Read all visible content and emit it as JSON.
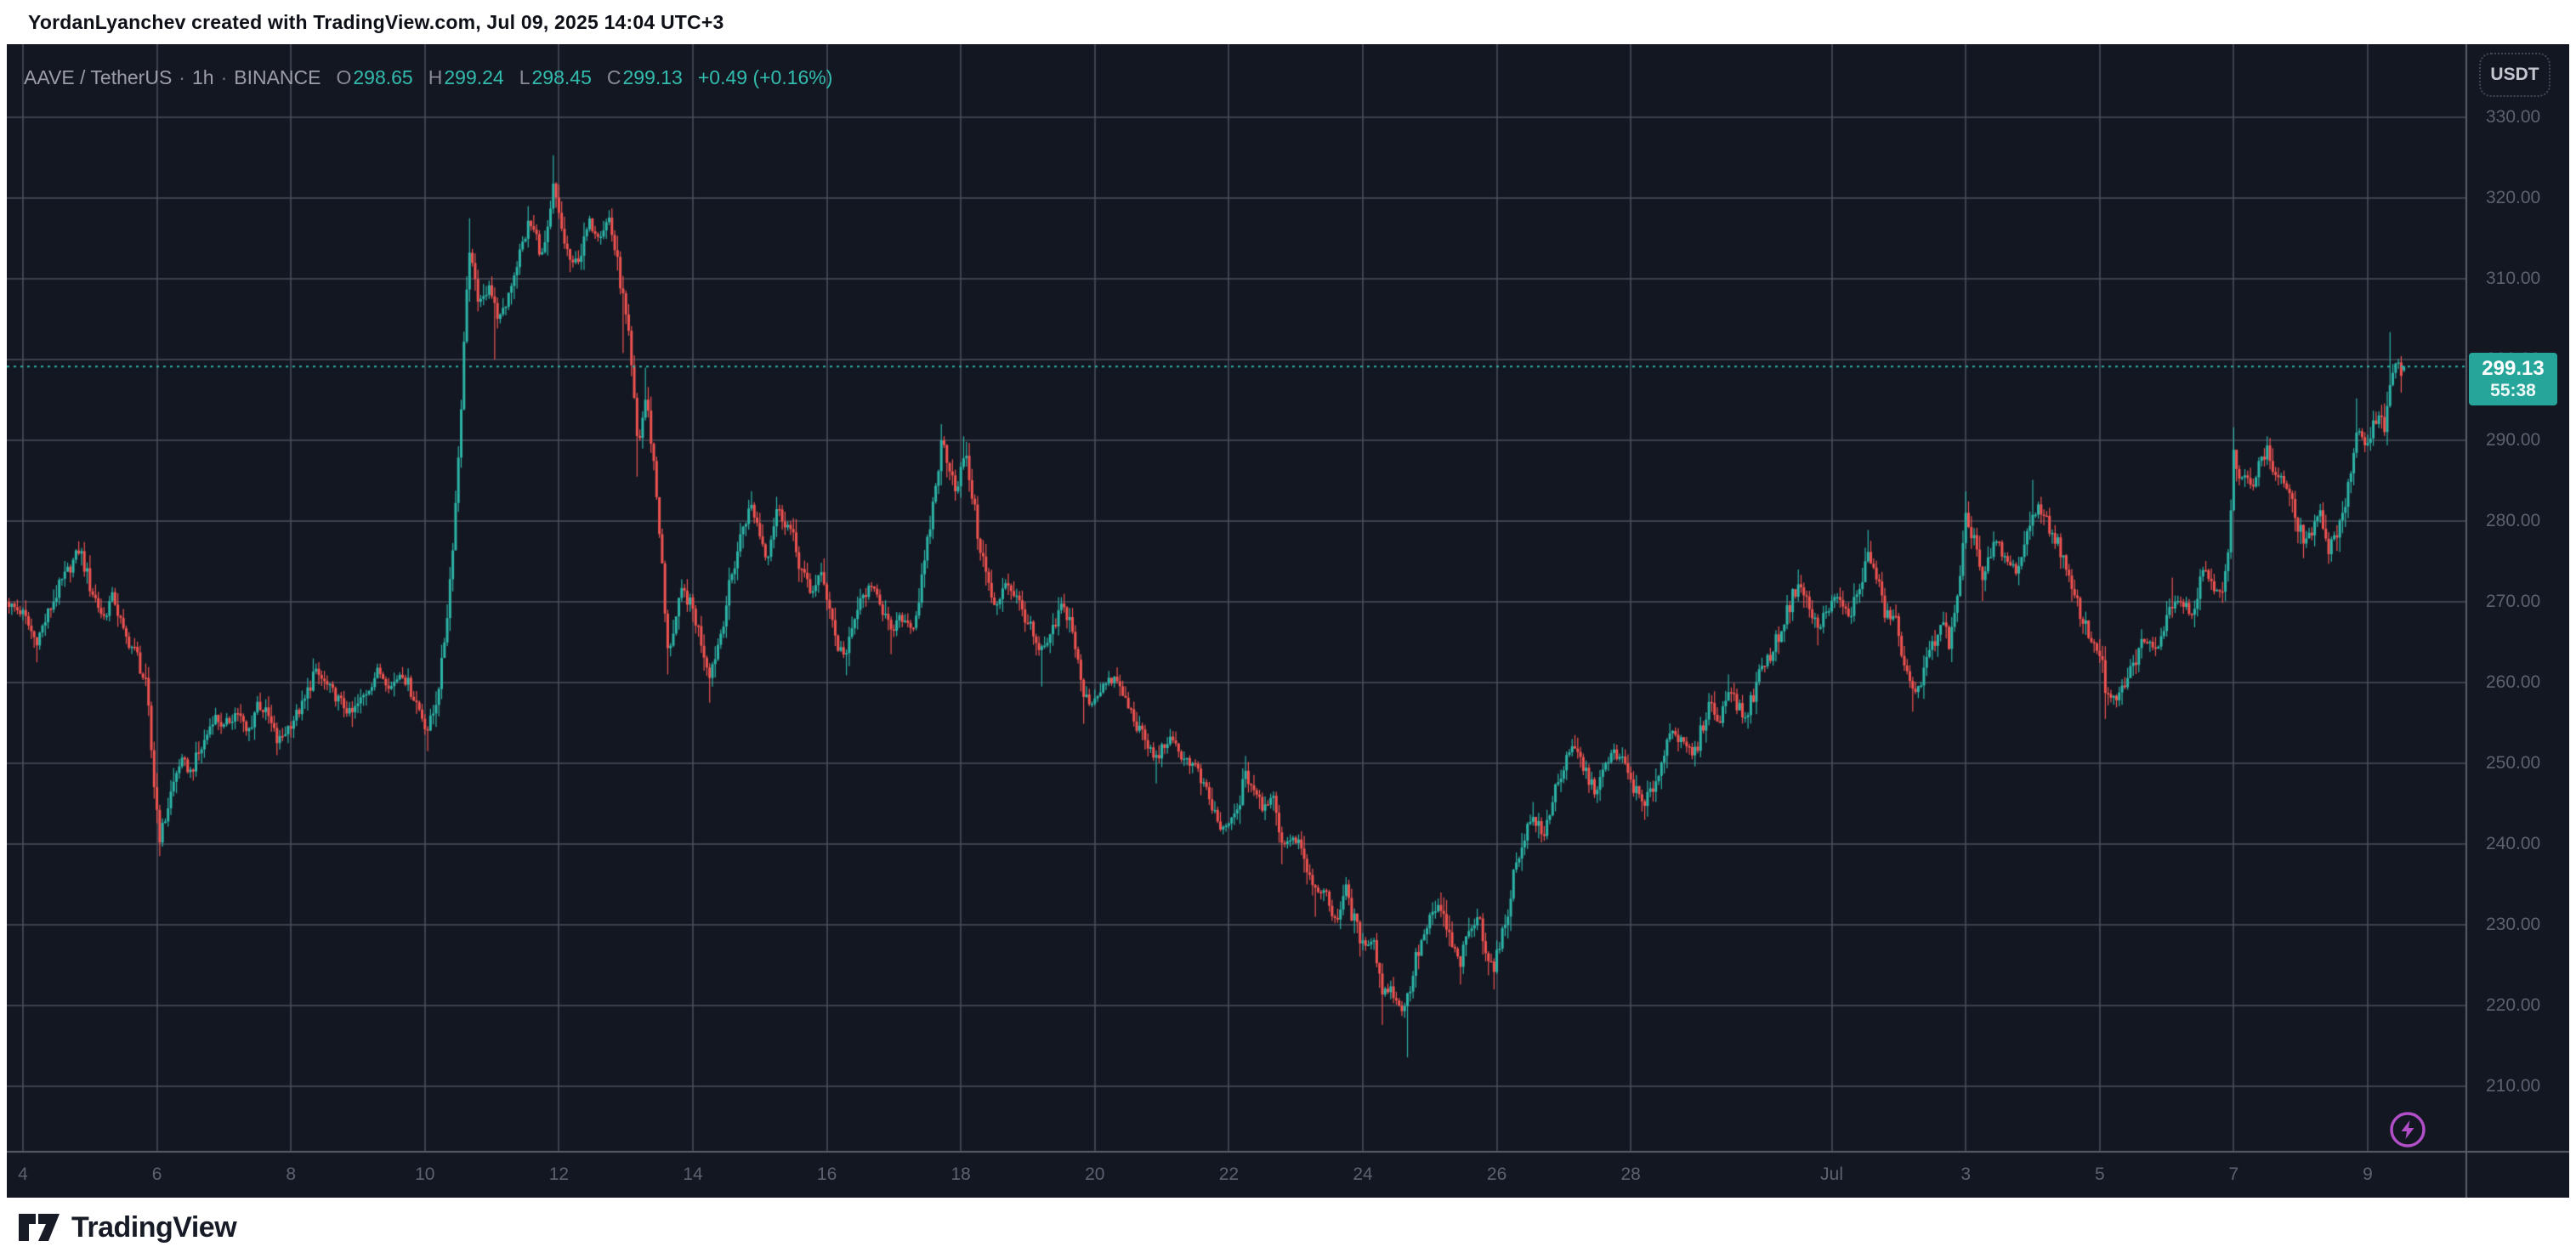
{
  "banner": {
    "text": "YordanLyanchev created with TradingView.com, Jul 09, 2025 14:04 UTC+3"
  },
  "legend": {
    "symbol": "AAVE / TetherUS",
    "separator": "·",
    "interval": "1h",
    "exchange": "BINANCE",
    "ohlc": [
      {
        "k": "O",
        "v": "298.65"
      },
      {
        "k": "H",
        "v": "299.24"
      },
      {
        "k": "L",
        "v": "298.45"
      },
      {
        "k": "C",
        "v": "299.13"
      }
    ],
    "change": "+0.49 (+0.16%)"
  },
  "price_axis": {
    "currency_button": "USDT",
    "ticks": [
      "330.00",
      "320.00",
      "310.00",
      "300.00",
      "290.00",
      "280.00",
      "270.00",
      "260.00",
      "250.00",
      "240.00",
      "230.00",
      "220.00",
      "210.00"
    ],
    "tick_prices": [
      330,
      320,
      310,
      300,
      290,
      280,
      270,
      260,
      250,
      240,
      230,
      220,
      210
    ]
  },
  "price_tag": {
    "price": "299.13",
    "countdown": "55:38"
  },
  "time_axis": {
    "labels": [
      {
        "label": "4",
        "d": 0
      },
      {
        "label": "6",
        "d": 2
      },
      {
        "label": "8",
        "d": 4
      },
      {
        "label": "10",
        "d": 6
      },
      {
        "label": "12",
        "d": 8
      },
      {
        "label": "14",
        "d": 10
      },
      {
        "label": "16",
        "d": 12
      },
      {
        "label": "18",
        "d": 14
      },
      {
        "label": "20",
        "d": 16
      },
      {
        "label": "22",
        "d": 18
      },
      {
        "label": "24",
        "d": 20
      },
      {
        "label": "26",
        "d": 22
      },
      {
        "label": "28",
        "d": 24
      },
      {
        "label": "Jul",
        "d": 27
      },
      {
        "label": "3",
        "d": 29
      },
      {
        "label": "5",
        "d": 31
      },
      {
        "label": "7",
        "d": 33
      },
      {
        "label": "9",
        "d": 35
      }
    ]
  },
  "footer": {
    "brand": "TradingView"
  },
  "colors": {
    "background": "#131722",
    "grid": "#4a4e5a",
    "axis_border": "#5a5e68",
    "up": "#2cb4a7",
    "down": "#ef5350",
    "price_line": "#2cb4a7",
    "price_tag_bg": "#26a69a",
    "flash_purple": "#b14ec8"
  },
  "chart_data": {
    "type": "candlestick",
    "title": "AAVE / TetherUS · 1h · BINANCE",
    "symbol": "AAVE/USDT",
    "interval": "1h",
    "exchange": "BINANCE",
    "current_candle": {
      "open": 298.65,
      "high": 299.24,
      "low": 298.45,
      "close": 299.13
    },
    "change_abs": 0.49,
    "change_pct": 0.16,
    "last_price": 299.13,
    "ylim": [
      202,
      343
    ],
    "x_days_span": [
      "Jun 4",
      "Jul 9"
    ],
    "gridline_prices": [
      210,
      220,
      230,
      240,
      250,
      260,
      270,
      280,
      290,
      300,
      310,
      320,
      330
    ],
    "keypoints_day_price": [
      [
        -0.25,
        270
      ],
      [
        0,
        268.5
      ],
      [
        0.2,
        265
      ],
      [
        0.35,
        268
      ],
      [
        0.55,
        272
      ],
      [
        0.85,
        276.5
      ],
      [
        1,
        272
      ],
      [
        1.2,
        268
      ],
      [
        1.35,
        271
      ],
      [
        1.5,
        266
      ],
      [
        1.7,
        263.5
      ],
      [
        1.85,
        259
      ],
      [
        1.95,
        248
      ],
      [
        2.05,
        240.5
      ],
      [
        2.2,
        246
      ],
      [
        2.35,
        250.5
      ],
      [
        2.5,
        249
      ],
      [
        2.7,
        252.5
      ],
      [
        2.85,
        256
      ],
      [
        3,
        254.5
      ],
      [
        3.2,
        256.5
      ],
      [
        3.35,
        253.5
      ],
      [
        3.5,
        257.5
      ],
      [
        3.65,
        256
      ],
      [
        3.8,
        252.5
      ],
      [
        4,
        255
      ],
      [
        4.2,
        257.5
      ],
      [
        4.35,
        261.5
      ],
      [
        4.55,
        259.5
      ],
      [
        4.75,
        257.5
      ],
      [
        4.9,
        256
      ],
      [
        5.1,
        258.5
      ],
      [
        5.3,
        261.5
      ],
      [
        5.5,
        259.5
      ],
      [
        5.65,
        261.5
      ],
      [
        5.85,
        258
      ],
      [
        6.05,
        254
      ],
      [
        6.15,
        257
      ],
      [
        6.25,
        262
      ],
      [
        6.35,
        270
      ],
      [
        6.45,
        281
      ],
      [
        6.52,
        291
      ],
      [
        6.58,
        301
      ],
      [
        6.65,
        314
      ],
      [
        6.75,
        309
      ],
      [
        6.85,
        306.5
      ],
      [
        6.95,
        310
      ],
      [
        7.05,
        306
      ],
      [
        7.15,
        305
      ],
      [
        7.3,
        310
      ],
      [
        7.45,
        314
      ],
      [
        7.55,
        317
      ],
      [
        7.65,
        315.5
      ],
      [
        7.75,
        313
      ],
      [
        7.85,
        316
      ],
      [
        7.92,
        321.5
      ],
      [
        8,
        317.5
      ],
      [
        8.1,
        314
      ],
      [
        8.2,
        311.5
      ],
      [
        8.35,
        313.5
      ],
      [
        8.45,
        317
      ],
      [
        8.6,
        315.5
      ],
      [
        8.75,
        317.5
      ],
      [
        8.85,
        313
      ],
      [
        8.95,
        308
      ],
      [
        9.05,
        302
      ],
      [
        9.18,
        289
      ],
      [
        9.3,
        295.5
      ],
      [
        9.42,
        287
      ],
      [
        9.52,
        277
      ],
      [
        9.62,
        263.5
      ],
      [
        9.75,
        268
      ],
      [
        9.85,
        271.5
      ],
      [
        10,
        269
      ],
      [
        10.1,
        266
      ],
      [
        10.25,
        261
      ],
      [
        10.4,
        265.5
      ],
      [
        10.55,
        272
      ],
      [
        10.75,
        279.5
      ],
      [
        10.88,
        282
      ],
      [
        11,
        278.5
      ],
      [
        11.1,
        275.5
      ],
      [
        11.25,
        281.5
      ],
      [
        11.45,
        279
      ],
      [
        11.6,
        274.5
      ],
      [
        11.75,
        271
      ],
      [
        11.9,
        273.5
      ],
      [
        12.05,
        269.5
      ],
      [
        12.15,
        264.5
      ],
      [
        12.3,
        263.5
      ],
      [
        12.45,
        269
      ],
      [
        12.6,
        271.5
      ],
      [
        12.75,
        271.5
      ],
      [
        12.95,
        266
      ],
      [
        13.1,
        268
      ],
      [
        13.3,
        267
      ],
      [
        13.45,
        274
      ],
      [
        13.6,
        283
      ],
      [
        13.72,
        290
      ],
      [
        13.85,
        286.5
      ],
      [
        13.95,
        283.5
      ],
      [
        14.05,
        288.5
      ],
      [
        14.15,
        284.5
      ],
      [
        14.25,
        278.5
      ],
      [
        14.4,
        272.5
      ],
      [
        14.52,
        268.5
      ],
      [
        14.65,
        272.8
      ],
      [
        14.8,
        271
      ],
      [
        15,
        267.5
      ],
      [
        15.17,
        263.5
      ],
      [
        15.35,
        265.5
      ],
      [
        15.5,
        269.5
      ],
      [
        15.65,
        267.5
      ],
      [
        15.82,
        258.5
      ],
      [
        15.95,
        257.5
      ],
      [
        16.1,
        259.5
      ],
      [
        16.3,
        260.5
      ],
      [
        16.5,
        257
      ],
      [
        16.7,
        253.5
      ],
      [
        16.9,
        250.5
      ],
      [
        17.1,
        253
      ],
      [
        17.3,
        251
      ],
      [
        17.5,
        249.5
      ],
      [
        17.7,
        245.5
      ],
      [
        17.9,
        241.5
      ],
      [
        18.1,
        243.5
      ],
      [
        18.25,
        248.5
      ],
      [
        18.4,
        246.5
      ],
      [
        18.5,
        244
      ],
      [
        18.65,
        246.5
      ],
      [
        18.8,
        240
      ],
      [
        18.95,
        241
      ],
      [
        19.1,
        240
      ],
      [
        19.25,
        234
      ],
      [
        19.4,
        234.5
      ],
      [
        19.5,
        232.5
      ],
      [
        19.6,
        230.5
      ],
      [
        19.75,
        234.5
      ],
      [
        19.85,
        231
      ],
      [
        20,
        227.5
      ],
      [
        20.15,
        228.5
      ],
      [
        20.3,
        221.5
      ],
      [
        20.42,
        222.5
      ],
      [
        20.55,
        219.5
      ],
      [
        20.66,
        220.5
      ],
      [
        20.8,
        226
      ],
      [
        21,
        230.5
      ],
      [
        21.15,
        232.5
      ],
      [
        21.3,
        228
      ],
      [
        21.45,
        225
      ],
      [
        21.6,
        229.5
      ],
      [
        21.75,
        230.8
      ],
      [
        21.85,
        226.5
      ],
      [
        21.95,
        224.5
      ],
      [
        22.1,
        229
      ],
      [
        22.25,
        236
      ],
      [
        22.4,
        241
      ],
      [
        22.55,
        243.5
      ],
      [
        22.7,
        240.5
      ],
      [
        22.85,
        246.5
      ],
      [
        23,
        249.5
      ],
      [
        23.15,
        252
      ],
      [
        23.3,
        249.5
      ],
      [
        23.45,
        246.5
      ],
      [
        23.6,
        249
      ],
      [
        23.75,
        251.5
      ],
      [
        23.9,
        250
      ],
      [
        24.05,
        247
      ],
      [
        24.2,
        244.5
      ],
      [
        24.35,
        247.5
      ],
      [
        24.5,
        251
      ],
      [
        24.6,
        255
      ],
      [
        24.75,
        252.5
      ],
      [
        24.95,
        251
      ],
      [
        25.1,
        255.5
      ],
      [
        25.2,
        258
      ],
      [
        25.3,
        254.5
      ],
      [
        25.45,
        259.5
      ],
      [
        25.6,
        257
      ],
      [
        25.7,
        255.5
      ],
      [
        25.85,
        259
      ],
      [
        25.95,
        262
      ],
      [
        26.1,
        263.5
      ],
      [
        26.3,
        268
      ],
      [
        26.5,
        272.5
      ],
      [
        26.65,
        269.5
      ],
      [
        26.8,
        266.5
      ],
      [
        26.95,
        269.5
      ],
      [
        27.1,
        270.5
      ],
      [
        27.25,
        268
      ],
      [
        27.4,
        271.5
      ],
      [
        27.55,
        276
      ],
      [
        27.65,
        273.5
      ],
      [
        27.8,
        268.5
      ],
      [
        27.95,
        268
      ],
      [
        28.1,
        261
      ],
      [
        28.2,
        259
      ],
      [
        28.35,
        260.5
      ],
      [
        28.5,
        264.5
      ],
      [
        28.65,
        268
      ],
      [
        28.75,
        264.5
      ],
      [
        28.9,
        271
      ],
      [
        29,
        280
      ],
      [
        29.15,
        277.5
      ],
      [
        29.25,
        272.5
      ],
      [
        29.45,
        277.5
      ],
      [
        29.6,
        275
      ],
      [
        29.75,
        274
      ],
      [
        29.9,
        277
      ],
      [
        30,
        281
      ],
      [
        30.1,
        282
      ],
      [
        30.25,
        279
      ],
      [
        30.4,
        277
      ],
      [
        30.55,
        272
      ],
      [
        30.7,
        269
      ],
      [
        30.85,
        265.5
      ],
      [
        31,
        264
      ],
      [
        31.1,
        258.5
      ],
      [
        31.25,
        257.5
      ],
      [
        31.35,
        259.5
      ],
      [
        31.5,
        262
      ],
      [
        31.65,
        265.5
      ],
      [
        31.8,
        264
      ],
      [
        31.95,
        266.5
      ],
      [
        32.1,
        270.5
      ],
      [
        32.25,
        270
      ],
      [
        32.4,
        268.5
      ],
      [
        32.55,
        274.5
      ],
      [
        32.7,
        272
      ],
      [
        32.85,
        271.5
      ],
      [
        32.93,
        276.5
      ],
      [
        33,
        288
      ],
      [
        33.1,
        284.5
      ],
      [
        33.2,
        286
      ],
      [
        33.3,
        284.5
      ],
      [
        33.4,
        287.5
      ],
      [
        33.5,
        288.8
      ],
      [
        33.6,
        286
      ],
      [
        33.75,
        285
      ],
      [
        33.9,
        281
      ],
      [
        34.05,
        277.5
      ],
      [
        34.2,
        279
      ],
      [
        34.3,
        281
      ],
      [
        34.42,
        276.5
      ],
      [
        34.55,
        279
      ],
      [
        34.7,
        283.5
      ],
      [
        34.85,
        291
      ],
      [
        34.95,
        289.5
      ],
      [
        35.05,
        291
      ],
      [
        35.15,
        293.5
      ],
      [
        35.25,
        291.5
      ],
      [
        35.33,
        297.5
      ],
      [
        35.4,
        299.5
      ],
      [
        35.45,
        299
      ],
      [
        35.5,
        297.7
      ],
      [
        35.58,
        299.13
      ]
    ],
    "wick_extremes_day_price": [
      [
        0.85,
        277.5
      ],
      [
        4.35,
        263
      ],
      [
        6.65,
        317.5
      ],
      [
        7.55,
        319
      ],
      [
        7.92,
        325.3
      ],
      [
        9.3,
        299
      ],
      [
        10.88,
        283.7
      ],
      [
        11.25,
        283
      ],
      [
        13.72,
        292
      ],
      [
        14.05,
        290.5
      ],
      [
        18.25,
        250.9
      ],
      [
        21.15,
        234
      ],
      [
        22.55,
        245.2
      ],
      [
        23.15,
        253.5
      ],
      [
        25.45,
        261
      ],
      [
        26.5,
        274
      ],
      [
        27.55,
        278.9
      ],
      [
        29,
        283.7
      ],
      [
        30,
        285.1
      ],
      [
        32.1,
        273
      ],
      [
        33,
        291.6
      ],
      [
        33.5,
        290.5
      ],
      [
        34.85,
        295.2
      ],
      [
        35.33,
        303.4
      ],
      [
        0.2,
        262.5
      ],
      [
        2.05,
        238.5
      ],
      [
        3.8,
        251
      ],
      [
        4.9,
        254.5
      ],
      [
        6.05,
        251.5
      ],
      [
        7.05,
        300
      ],
      [
        8.95,
        300.8
      ],
      [
        9.18,
        285.5
      ],
      [
        9.62,
        261
      ],
      [
        10.25,
        257.5
      ],
      [
        12.3,
        260.9
      ],
      [
        12.95,
        263.5
      ],
      [
        15.2,
        259.5
      ],
      [
        15.85,
        254.9
      ],
      [
        16.9,
        247.5
      ],
      [
        18.8,
        237.5
      ],
      [
        19.3,
        231
      ],
      [
        20.3,
        217.6
      ],
      [
        20.66,
        213.6
      ],
      [
        21.45,
        222.6
      ],
      [
        21.95,
        222
      ],
      [
        24.2,
        243
      ],
      [
        24.95,
        249.6
      ],
      [
        26.8,
        264.6
      ],
      [
        28.2,
        256.4
      ],
      [
        29.25,
        270.1
      ],
      [
        31.1,
        255.5
      ],
      [
        34.05,
        275.4
      ],
      [
        34.42,
        274.7
      ],
      [
        35.5,
        295.9
      ]
    ]
  }
}
